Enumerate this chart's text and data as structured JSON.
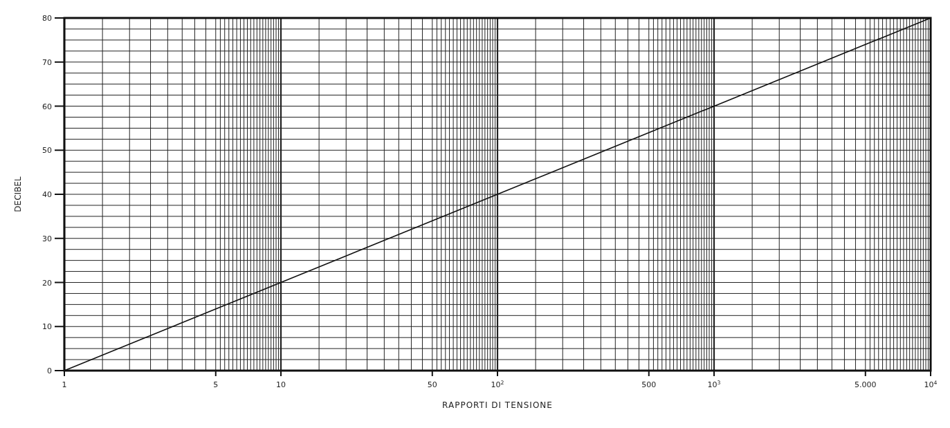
{
  "chart_data": {
    "type": "line",
    "xlabel": "RAPPORTI DI TENSIONE",
    "ylabel": "DECIBEL",
    "x": [
      1,
      10000
    ],
    "series": [
      {
        "color": "#111111",
        "values": [
          0,
          80
        ]
      }
    ],
    "log": "x",
    "xlim": [
      1,
      10000
    ],
    "ylim": [
      0,
      80
    ],
    "xticks": [
      1,
      5,
      10,
      50,
      {
        "value": 100,
        "label": "10$^{2}$"
      },
      500,
      {
        "value": 1000,
        "label": "10$^{3}$"
      },
      {
        "value": 5000,
        "label": "5.000"
      },
      {
        "value": 10000,
        "label": "10$^{4}$"
      }
    ],
    "yticks": [
      0,
      10,
      20,
      30,
      40,
      50,
      60,
      70,
      80
    ],
    "grid": true,
    "marker": "none",
    "line_style": "solid"
  }
}
